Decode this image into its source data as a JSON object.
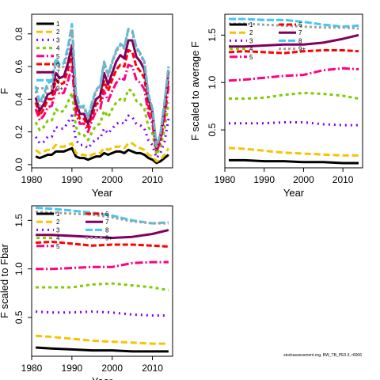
{
  "footnote": "stockassessment.org, BW_TB_PE0.3, r6006",
  "series_names": [
    "1",
    "2",
    "3",
    "4",
    "5",
    "6",
    "7",
    "8",
    "9+"
  ],
  "colors": {
    "1": "#000000",
    "2": "#f5c400",
    "3": "#8000ff",
    "4": "#7ccd00",
    "5": "#ff0080",
    "6": "#ff0000",
    "7": "#800060",
    "8": "#40c8f0",
    "9+": "#a0a0a0"
  },
  "chart_data": [
    {
      "type": "line",
      "id": "F",
      "xlabel": "Year",
      "ylabel": "F",
      "xlim": [
        1980,
        2015
      ],
      "ylim": [
        -0.02,
        0.92
      ],
      "xticks": [
        1980,
        1990,
        2000,
        2010
      ],
      "yticks": [
        "0.0",
        "0.2",
        "0.4",
        "0.6",
        "0.8"
      ],
      "x": [
        1981,
        1982,
        1983,
        1984,
        1985,
        1986,
        1987,
        1988,
        1989,
        1990,
        1991,
        1992,
        1993,
        1994,
        1995,
        1996,
        1997,
        1998,
        1999,
        2000,
        2001,
        2002,
        2003,
        2004,
        2005,
        2006,
        2007,
        2008,
        2009,
        2010,
        2011,
        2012,
        2013,
        2014
      ],
      "series": [
        {
          "name": "1",
          "values": [
            0.05,
            0.04,
            0.05,
            0.06,
            0.06,
            0.08,
            0.08,
            0.08,
            0.09,
            0.1,
            0.05,
            0.04,
            0.04,
            0.03,
            0.04,
            0.05,
            0.05,
            0.07,
            0.06,
            0.07,
            0.08,
            0.08,
            0.07,
            0.09,
            0.08,
            0.07,
            0.07,
            0.06,
            0.04,
            0.03,
            0.01,
            0.02,
            0.04,
            0.06
          ]
        },
        {
          "name": "2",
          "values": [
            0.09,
            0.07,
            0.08,
            0.09,
            0.09,
            0.12,
            0.11,
            0.11,
            0.12,
            0.13,
            0.07,
            0.06,
            0.06,
            0.05,
            0.06,
            0.07,
            0.07,
            0.1,
            0.09,
            0.1,
            0.11,
            0.11,
            0.1,
            0.13,
            0.13,
            0.11,
            0.1,
            0.09,
            0.06,
            0.05,
            0.02,
            0.03,
            0.06,
            0.1
          ]
        },
        {
          "name": "3",
          "values": [
            0.17,
            0.13,
            0.14,
            0.17,
            0.17,
            0.23,
            0.22,
            0.22,
            0.26,
            0.3,
            0.15,
            0.12,
            0.12,
            0.1,
            0.13,
            0.16,
            0.16,
            0.22,
            0.19,
            0.22,
            0.25,
            0.26,
            0.25,
            0.3,
            0.29,
            0.25,
            0.24,
            0.22,
            0.15,
            0.12,
            0.04,
            0.07,
            0.14,
            0.28
          ]
        },
        {
          "name": "4",
          "values": [
            0.26,
            0.21,
            0.23,
            0.27,
            0.27,
            0.34,
            0.32,
            0.33,
            0.38,
            0.44,
            0.23,
            0.18,
            0.18,
            0.15,
            0.2,
            0.24,
            0.25,
            0.33,
            0.29,
            0.34,
            0.38,
            0.4,
            0.39,
            0.46,
            0.45,
            0.39,
            0.37,
            0.34,
            0.23,
            0.19,
            0.06,
            0.11,
            0.21,
            0.38
          ]
        },
        {
          "name": "5",
          "values": [
            0.34,
            0.27,
            0.3,
            0.35,
            0.36,
            0.46,
            0.43,
            0.44,
            0.51,
            0.6,
            0.31,
            0.25,
            0.25,
            0.2,
            0.27,
            0.33,
            0.34,
            0.45,
            0.39,
            0.45,
            0.5,
            0.53,
            0.52,
            0.61,
            0.6,
            0.52,
            0.5,
            0.46,
            0.31,
            0.25,
            0.08,
            0.14,
            0.28,
            0.48
          ]
        },
        {
          "name": "6",
          "values": [
            0.38,
            0.3,
            0.34,
            0.4,
            0.4,
            0.52,
            0.49,
            0.5,
            0.58,
            0.68,
            0.35,
            0.28,
            0.28,
            0.23,
            0.3,
            0.37,
            0.38,
            0.51,
            0.45,
            0.52,
            0.58,
            0.61,
            0.6,
            0.7,
            0.69,
            0.6,
            0.57,
            0.53,
            0.36,
            0.29,
            0.09,
            0.16,
            0.32,
            0.53
          ]
        },
        {
          "name": "7",
          "values": [
            0.41,
            0.33,
            0.37,
            0.43,
            0.44,
            0.56,
            0.53,
            0.54,
            0.62,
            0.73,
            0.38,
            0.31,
            0.31,
            0.25,
            0.33,
            0.4,
            0.42,
            0.56,
            0.49,
            0.56,
            0.63,
            0.67,
            0.65,
            0.76,
            0.76,
            0.66,
            0.63,
            0.58,
            0.4,
            0.32,
            0.1,
            0.18,
            0.35,
            0.57
          ]
        },
        {
          "name": "8",
          "values": [
            0.48,
            0.38,
            0.43,
            0.5,
            0.51,
            0.65,
            0.61,
            0.62,
            0.72,
            0.86,
            0.44,
            0.35,
            0.36,
            0.29,
            0.38,
            0.46,
            0.48,
            0.63,
            0.55,
            0.63,
            0.7,
            0.74,
            0.72,
            0.83,
            0.82,
            0.72,
            0.68,
            0.63,
            0.43,
            0.34,
            0.11,
            0.19,
            0.38,
            0.6
          ]
        },
        {
          "name": "9+",
          "values": [
            0.45,
            0.36,
            0.41,
            0.47,
            0.48,
            0.62,
            0.59,
            0.6,
            0.69,
            0.83,
            0.43,
            0.34,
            0.35,
            0.28,
            0.37,
            0.45,
            0.47,
            0.62,
            0.54,
            0.62,
            0.69,
            0.73,
            0.71,
            0.82,
            0.81,
            0.71,
            0.67,
            0.62,
            0.42,
            0.34,
            0.11,
            0.19,
            0.37,
            0.59
          ]
        }
      ]
    },
    {
      "type": "line",
      "id": "F_scaled_avg",
      "xlabel": "Year",
      "ylabel": "F scaled to average F",
      "xlim": [
        1980,
        2015
      ],
      "ylim": [
        0.1,
        1.72
      ],
      "xticks": [
        1980,
        1990,
        2000,
        2010
      ],
      "yticks": [
        "0.5",
        "1.0",
        "1.5"
      ],
      "x": [
        1981,
        1985,
        1990,
        1995,
        2000,
        2005,
        2010,
        2014
      ],
      "series": [
        {
          "name": "1",
          "values": [
            0.18,
            0.18,
            0.17,
            0.17,
            0.16,
            0.16,
            0.15,
            0.15
          ]
        },
        {
          "name": "2",
          "values": [
            0.31,
            0.3,
            0.28,
            0.26,
            0.25,
            0.24,
            0.23,
            0.23
          ]
        },
        {
          "name": "3",
          "values": [
            0.57,
            0.57,
            0.57,
            0.58,
            0.58,
            0.56,
            0.55,
            0.55
          ]
        },
        {
          "name": "4",
          "values": [
            0.83,
            0.83,
            0.84,
            0.87,
            0.89,
            0.88,
            0.86,
            0.83
          ]
        },
        {
          "name": "5",
          "values": [
            1.02,
            1.03,
            1.05,
            1.07,
            1.08,
            1.13,
            1.15,
            1.14
          ]
        },
        {
          "name": "6",
          "values": [
            1.32,
            1.33,
            1.32,
            1.31,
            1.33,
            1.34,
            1.34,
            1.33
          ]
        },
        {
          "name": "7",
          "values": [
            1.38,
            1.38,
            1.39,
            1.4,
            1.4,
            1.42,
            1.46,
            1.5
          ]
        },
        {
          "name": "8",
          "values": [
            1.67,
            1.67,
            1.66,
            1.66,
            1.64,
            1.61,
            1.59,
            1.6
          ]
        },
        {
          "name": "9+",
          "values": [
            1.62,
            1.62,
            1.61,
            1.6,
            1.59,
            1.58,
            1.58,
            1.57
          ]
        }
      ]
    },
    {
      "type": "line",
      "id": "F_scaled_fbar",
      "xlabel": "Year",
      "ylabel": "F scaled to Fbar",
      "xlim": [
        1980,
        2015
      ],
      "ylim": [
        0.1,
        1.65
      ],
      "xticks": [
        1980,
        1990,
        2000,
        2010
      ],
      "yticks": [
        "0.5",
        "1.0",
        "1.5"
      ],
      "x": [
        1981,
        1985,
        1990,
        1995,
        2000,
        2005,
        2010,
        2014
      ],
      "series": [
        {
          "name": "1",
          "values": [
            0.19,
            0.18,
            0.17,
            0.16,
            0.16,
            0.15,
            0.15,
            0.15
          ]
        },
        {
          "name": "2",
          "values": [
            0.31,
            0.3,
            0.28,
            0.26,
            0.25,
            0.24,
            0.23,
            0.23
          ]
        },
        {
          "name": "3",
          "values": [
            0.56,
            0.55,
            0.55,
            0.56,
            0.55,
            0.53,
            0.52,
            0.52
          ]
        },
        {
          "name": "4",
          "values": [
            0.81,
            0.81,
            0.81,
            0.84,
            0.85,
            0.83,
            0.81,
            0.78
          ]
        },
        {
          "name": "5",
          "values": [
            1.0,
            1.0,
            1.01,
            1.02,
            1.02,
            1.06,
            1.07,
            1.07
          ]
        },
        {
          "name": "6",
          "values": [
            1.27,
            1.28,
            1.26,
            1.24,
            1.25,
            1.25,
            1.24,
            1.23
          ]
        },
        {
          "name": "7",
          "values": [
            1.35,
            1.35,
            1.34,
            1.33,
            1.32,
            1.33,
            1.36,
            1.4
          ]
        },
        {
          "name": "8",
          "values": [
            1.63,
            1.62,
            1.6,
            1.58,
            1.55,
            1.5,
            1.47,
            1.48
          ]
        },
        {
          "name": "9+",
          "values": [
            1.59,
            1.58,
            1.57,
            1.56,
            1.53,
            1.49,
            1.47,
            1.47
          ]
        }
      ]
    }
  ]
}
